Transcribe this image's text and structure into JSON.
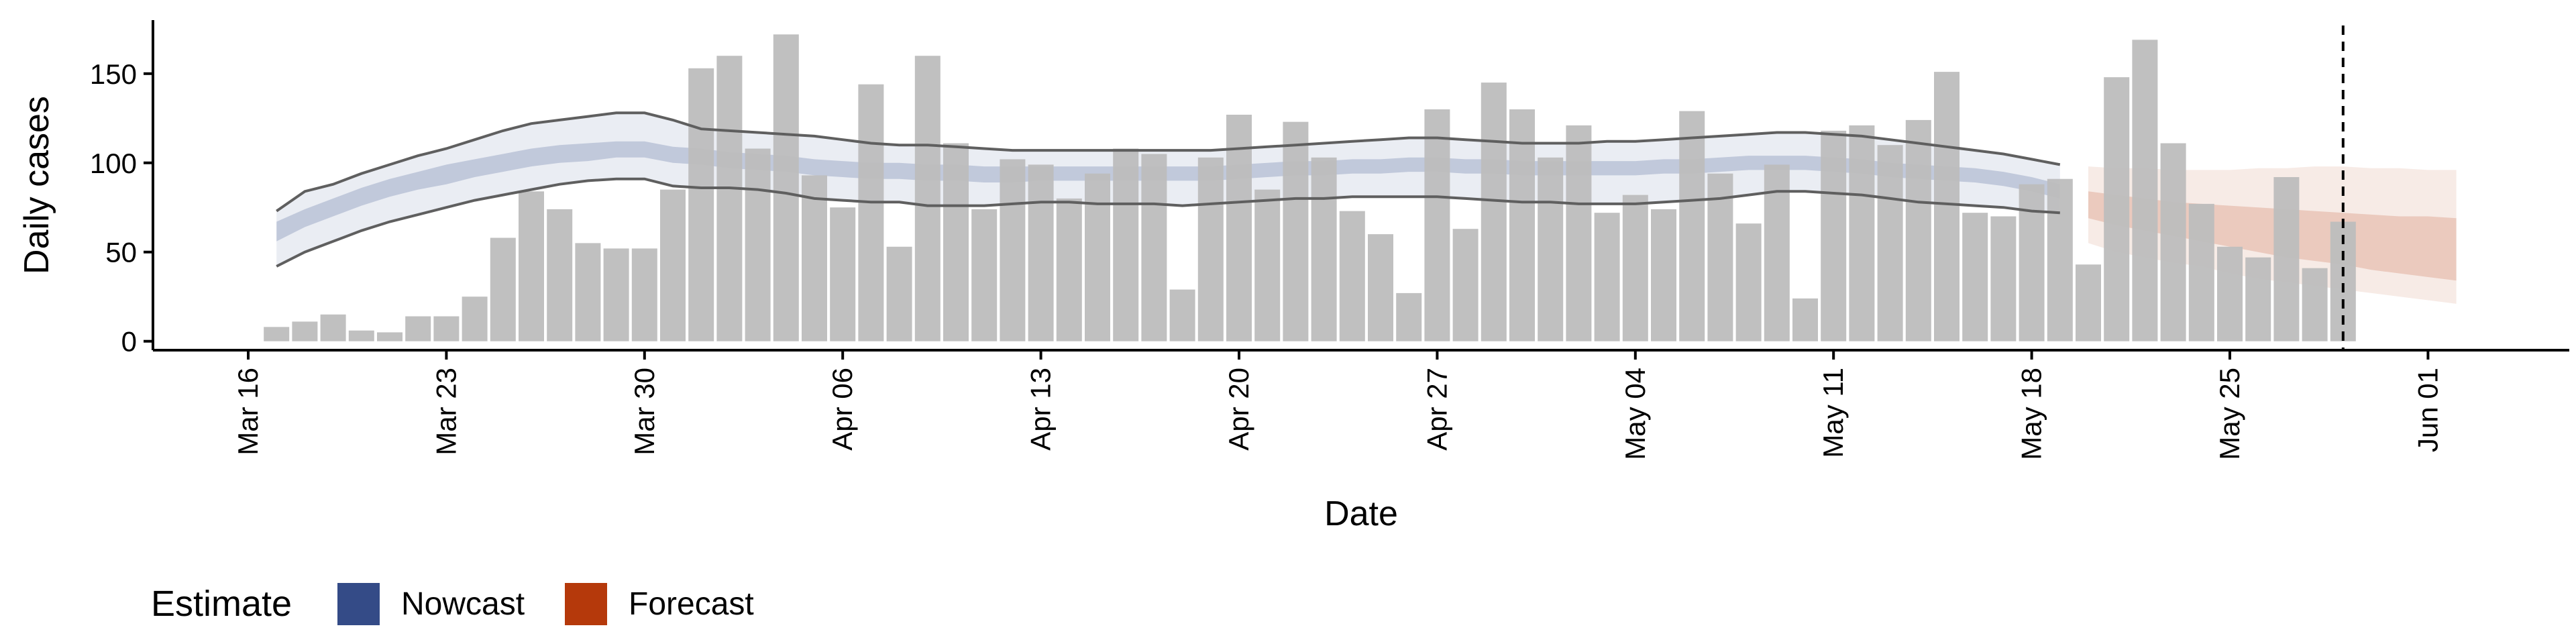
{
  "chart_data": {
    "type": "bar",
    "xlabel": "Date",
    "ylabel": "Daily cases",
    "ylim": [
      -5,
      180
    ],
    "xlim": [
      "2020-03-12",
      "2020-06-05"
    ],
    "x_ticks": [
      {
        "date": "2020-03-16",
        "label": "Mar 16"
      },
      {
        "date": "2020-03-23",
        "label": "Mar 23"
      },
      {
        "date": "2020-03-30",
        "label": "Mar 30"
      },
      {
        "date": "2020-04-06",
        "label": "Apr 06"
      },
      {
        "date": "2020-04-13",
        "label": "Apr 13"
      },
      {
        "date": "2020-04-20",
        "label": "Apr 20"
      },
      {
        "date": "2020-04-27",
        "label": "Apr 27"
      },
      {
        "date": "2020-05-04",
        "label": "May 04"
      },
      {
        "date": "2020-05-11",
        "label": "May 11"
      },
      {
        "date": "2020-05-18",
        "label": "May 18"
      },
      {
        "date": "2020-05-25",
        "label": "May 25"
      },
      {
        "date": "2020-06-01",
        "label": "Jun 01"
      }
    ],
    "y_ticks": [
      0,
      50,
      100,
      150
    ],
    "grid": false,
    "legend": {
      "title": "Estimate",
      "placement": "bottom-left",
      "items": [
        {
          "label": "Nowcast",
          "color": "#344b87"
        },
        {
          "label": "Forecast",
          "color": "#b5390b"
        }
      ]
    },
    "cutoff_date": "2020-05-29",
    "bars": {
      "color": "#bdbdbd",
      "dates": [
        "2020-03-17",
        "2020-03-18",
        "2020-03-19",
        "2020-03-20",
        "2020-03-21",
        "2020-03-22",
        "2020-03-23",
        "2020-03-24",
        "2020-03-25",
        "2020-03-26",
        "2020-03-27",
        "2020-03-28",
        "2020-03-29",
        "2020-03-30",
        "2020-03-31",
        "2020-04-01",
        "2020-04-02",
        "2020-04-03",
        "2020-04-04",
        "2020-04-05",
        "2020-04-06",
        "2020-04-07",
        "2020-04-08",
        "2020-04-09",
        "2020-04-10",
        "2020-04-11",
        "2020-04-12",
        "2020-04-13",
        "2020-04-14",
        "2020-04-15",
        "2020-04-16",
        "2020-04-17",
        "2020-04-18",
        "2020-04-19",
        "2020-04-20",
        "2020-04-21",
        "2020-04-22",
        "2020-04-23",
        "2020-04-24",
        "2020-04-25",
        "2020-04-26",
        "2020-04-27",
        "2020-04-28",
        "2020-04-29",
        "2020-04-30",
        "2020-05-01",
        "2020-05-02",
        "2020-05-03",
        "2020-05-04",
        "2020-05-05",
        "2020-05-06",
        "2020-05-07",
        "2020-05-08",
        "2020-05-09",
        "2020-05-10",
        "2020-05-11",
        "2020-05-12",
        "2020-05-13",
        "2020-05-14",
        "2020-05-15",
        "2020-05-16",
        "2020-05-17",
        "2020-05-18",
        "2020-05-19",
        "2020-05-20",
        "2020-05-21",
        "2020-05-22",
        "2020-05-23",
        "2020-05-24",
        "2020-05-25",
        "2020-05-26",
        "2020-05-27",
        "2020-05-28",
        "2020-05-29"
      ],
      "values": [
        8,
        11,
        15,
        6,
        5,
        14,
        14,
        25,
        58,
        84,
        74,
        55,
        52,
        52,
        85,
        153,
        160,
        108,
        172,
        93,
        75,
        144,
        53,
        160,
        111,
        74,
        102,
        99,
        80,
        94,
        108,
        105,
        29,
        103,
        127,
        85,
        123,
        103,
        73,
        60,
        27,
        130,
        63,
        145,
        130,
        103,
        121,
        72,
        82,
        74,
        129,
        94,
        66,
        99,
        24,
        118,
        121,
        110,
        124,
        151,
        72,
        70,
        88,
        91,
        43,
        148,
        169,
        111,
        77,
        53,
        47,
        92,
        41,
        67
      ]
    },
    "series": [
      {
        "name": "Nowcast",
        "color": "#344b87",
        "x": [
          "2020-03-17",
          "2020-03-18",
          "2020-03-19",
          "2020-03-20",
          "2020-03-21",
          "2020-03-22",
          "2020-03-23",
          "2020-03-24",
          "2020-03-25",
          "2020-03-26",
          "2020-03-27",
          "2020-03-28",
          "2020-03-29",
          "2020-03-30",
          "2020-03-31",
          "2020-04-01",
          "2020-04-02",
          "2020-04-03",
          "2020-04-04",
          "2020-04-05",
          "2020-04-06",
          "2020-04-07",
          "2020-04-08",
          "2020-04-09",
          "2020-04-10",
          "2020-04-11",
          "2020-04-12",
          "2020-04-13",
          "2020-04-14",
          "2020-04-15",
          "2020-04-16",
          "2020-04-17",
          "2020-04-18",
          "2020-04-19",
          "2020-04-20",
          "2020-04-21",
          "2020-04-22",
          "2020-04-23",
          "2020-04-24",
          "2020-04-25",
          "2020-04-26",
          "2020-04-27",
          "2020-04-28",
          "2020-04-29",
          "2020-04-30",
          "2020-05-01",
          "2020-05-02",
          "2020-05-03",
          "2020-05-04",
          "2020-05-05",
          "2020-05-06",
          "2020-05-07",
          "2020-05-08",
          "2020-05-09",
          "2020-05-10",
          "2020-05-11",
          "2020-05-12",
          "2020-05-13",
          "2020-05-14",
          "2020-05-15",
          "2020-05-16",
          "2020-05-17",
          "2020-05-18",
          "2020-05-19"
        ],
        "outer_low": [
          42,
          50,
          56,
          62,
          67,
          71,
          75,
          79,
          82,
          85,
          88,
          90,
          91,
          91,
          87,
          86,
          86,
          85,
          83,
          80,
          79,
          78,
          78,
          76,
          76,
          76,
          77,
          78,
          78,
          77,
          77,
          77,
          76,
          77,
          78,
          79,
          80,
          80,
          81,
          81,
          81,
          81,
          80,
          79,
          78,
          78,
          77,
          77,
          77,
          78,
          79,
          80,
          82,
          84,
          84,
          83,
          82,
          80,
          78,
          77,
          76,
          75,
          73,
          72
        ],
        "outer_high": [
          73,
          84,
          88,
          94,
          99,
          104,
          108,
          113,
          118,
          122,
          124,
          126,
          128,
          128,
          124,
          119,
          118,
          117,
          116,
          115,
          113,
          111,
          110,
          110,
          109,
          108,
          107,
          107,
          107,
          107,
          107,
          107,
          107,
          107,
          108,
          109,
          110,
          111,
          112,
          113,
          114,
          114,
          113,
          112,
          111,
          111,
          111,
          112,
          112,
          113,
          114,
          115,
          116,
          117,
          117,
          116,
          115,
          113,
          111,
          109,
          107,
          105,
          102,
          99
        ],
        "inner_low": [
          56,
          64,
          70,
          76,
          81,
          85,
          88,
          92,
          95,
          98,
          100,
          101,
          103,
          103,
          100,
          99,
          97,
          96,
          95,
          93,
          92,
          91,
          91,
          90,
          90,
          89,
          89,
          90,
          90,
          90,
          90,
          90,
          90,
          90,
          91,
          92,
          93,
          93,
          94,
          94,
          95,
          95,
          94,
          94,
          93,
          93,
          93,
          93,
          93,
          94,
          94,
          95,
          96,
          96,
          96,
          95,
          94,
          92,
          91,
          90,
          89,
          87,
          84,
          80
        ],
        "inner_high": [
          67,
          74,
          80,
          86,
          91,
          95,
          99,
          102,
          105,
          108,
          110,
          111,
          112,
          112,
          109,
          108,
          106,
          105,
          104,
          102,
          101,
          100,
          100,
          99,
          99,
          98,
          98,
          98,
          98,
          98,
          98,
          98,
          98,
          98,
          99,
          100,
          101,
          101,
          102,
          102,
          103,
          103,
          102,
          102,
          101,
          101,
          101,
          101,
          101,
          102,
          102,
          103,
          104,
          104,
          104,
          103,
          102,
          100,
          99,
          98,
          97,
          95,
          92,
          88
        ]
      },
      {
        "name": "Forecast",
        "color": "#b5390b",
        "x": [
          "2020-05-20",
          "2020-05-21",
          "2020-05-22",
          "2020-05-23",
          "2020-05-24",
          "2020-05-25",
          "2020-05-26",
          "2020-05-27",
          "2020-05-28",
          "2020-05-29",
          "2020-05-30",
          "2020-05-31",
          "2020-06-01",
          "2020-06-02"
        ],
        "outer_low": [
          55,
          50,
          47,
          44,
          42,
          38,
          35,
          33,
          31,
          29,
          27,
          25,
          23,
          21
        ],
        "outer_high": [
          98,
          97,
          97,
          96,
          96,
          96,
          97,
          97,
          98,
          98,
          97,
          97,
          96,
          96
        ],
        "inner_low": [
          69,
          65,
          62,
          59,
          56,
          53,
          50,
          47,
          45,
          43,
          40,
          38,
          36,
          34
        ],
        "inner_high": [
          84,
          82,
          80,
          78,
          77,
          76,
          75,
          74,
          73,
          72,
          71,
          70,
          70,
          69
        ]
      }
    ]
  }
}
